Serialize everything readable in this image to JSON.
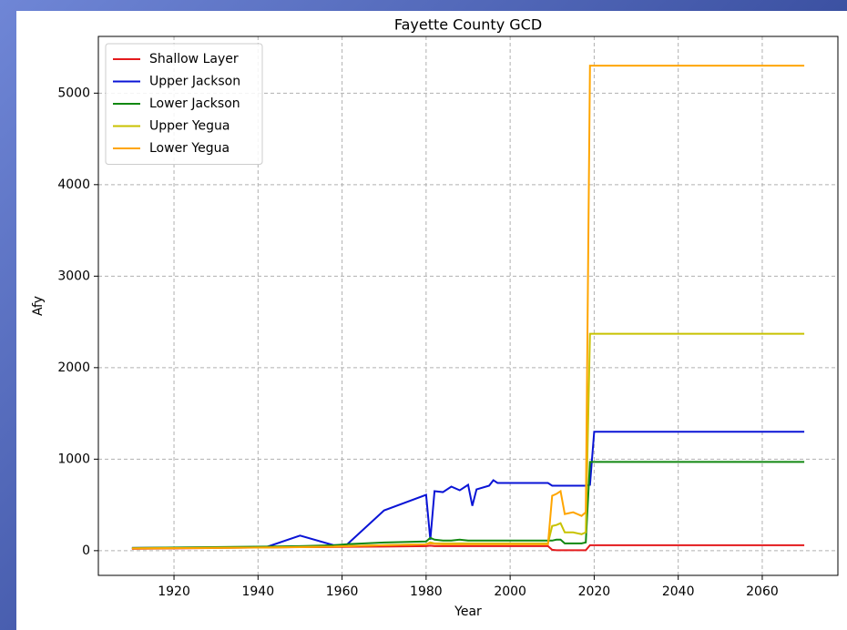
{
  "chart_data": {
    "type": "line",
    "title": "Fayette County GCD",
    "xlabel": "Year",
    "ylabel": "Afy",
    "x": [
      1910,
      1942,
      1950,
      1958,
      1961,
      1970,
      1980,
      1981,
      1982,
      1984,
      1986,
      1988,
      1990,
      1991,
      1992,
      1995,
      1996,
      1997,
      2009,
      2010,
      2011,
      2012,
      2013,
      2015,
      2017,
      2018,
      2019,
      2020,
      2070
    ],
    "series": [
      {
        "name": "Shallow Layer",
        "color": "#e41a1c",
        "values": [
          20,
          35,
          38,
          40,
          42,
          45,
          50,
          55,
          50,
          50,
          50,
          50,
          50,
          50,
          50,
          50,
          50,
          50,
          50,
          10,
          5,
          5,
          5,
          5,
          5,
          5,
          60,
          60,
          60
        ]
      },
      {
        "name": "Upper Jackson",
        "color": "#0a14d6",
        "values": [
          30,
          40,
          165,
          60,
          60,
          440,
          610,
          120,
          650,
          640,
          700,
          660,
          720,
          490,
          670,
          710,
          770,
          740,
          740,
          710,
          710,
          710,
          710,
          710,
          710,
          710,
          720,
          1300,
          1300
        ]
      },
      {
        "name": "Lower Jackson",
        "color": "#118811",
        "values": [
          30,
          45,
          50,
          60,
          70,
          90,
          100,
          140,
          120,
          110,
          110,
          120,
          110,
          110,
          110,
          110,
          110,
          110,
          110,
          110,
          120,
          120,
          80,
          80,
          80,
          90,
          970,
          970,
          970
        ]
      },
      {
        "name": "Upper Yegua",
        "color": "#c8c200",
        "values": [
          25,
          35,
          40,
          45,
          50,
          60,
          70,
          90,
          80,
          80,
          80,
          80,
          80,
          80,
          80,
          80,
          80,
          80,
          80,
          270,
          280,
          300,
          200,
          200,
          180,
          200,
          2370,
          2370,
          2370
        ]
      },
      {
        "name": "Lower Yegua",
        "color": "#ffa500",
        "values": [
          25,
          35,
          40,
          45,
          50,
          60,
          70,
          80,
          75,
          70,
          70,
          70,
          70,
          70,
          70,
          70,
          70,
          70,
          70,
          600,
          620,
          650,
          400,
          420,
          380,
          420,
          5300,
          5300,
          5300
        ]
      }
    ],
    "xlim": [
      1902,
      2078
    ],
    "ylim": [
      -270,
      5620
    ],
    "xticks": [
      1920,
      1940,
      1960,
      1980,
      2000,
      2020,
      2040,
      2060
    ],
    "yticks": [
      0,
      1000,
      2000,
      3000,
      4000,
      5000
    ],
    "grid": true,
    "legend": "upper left"
  }
}
